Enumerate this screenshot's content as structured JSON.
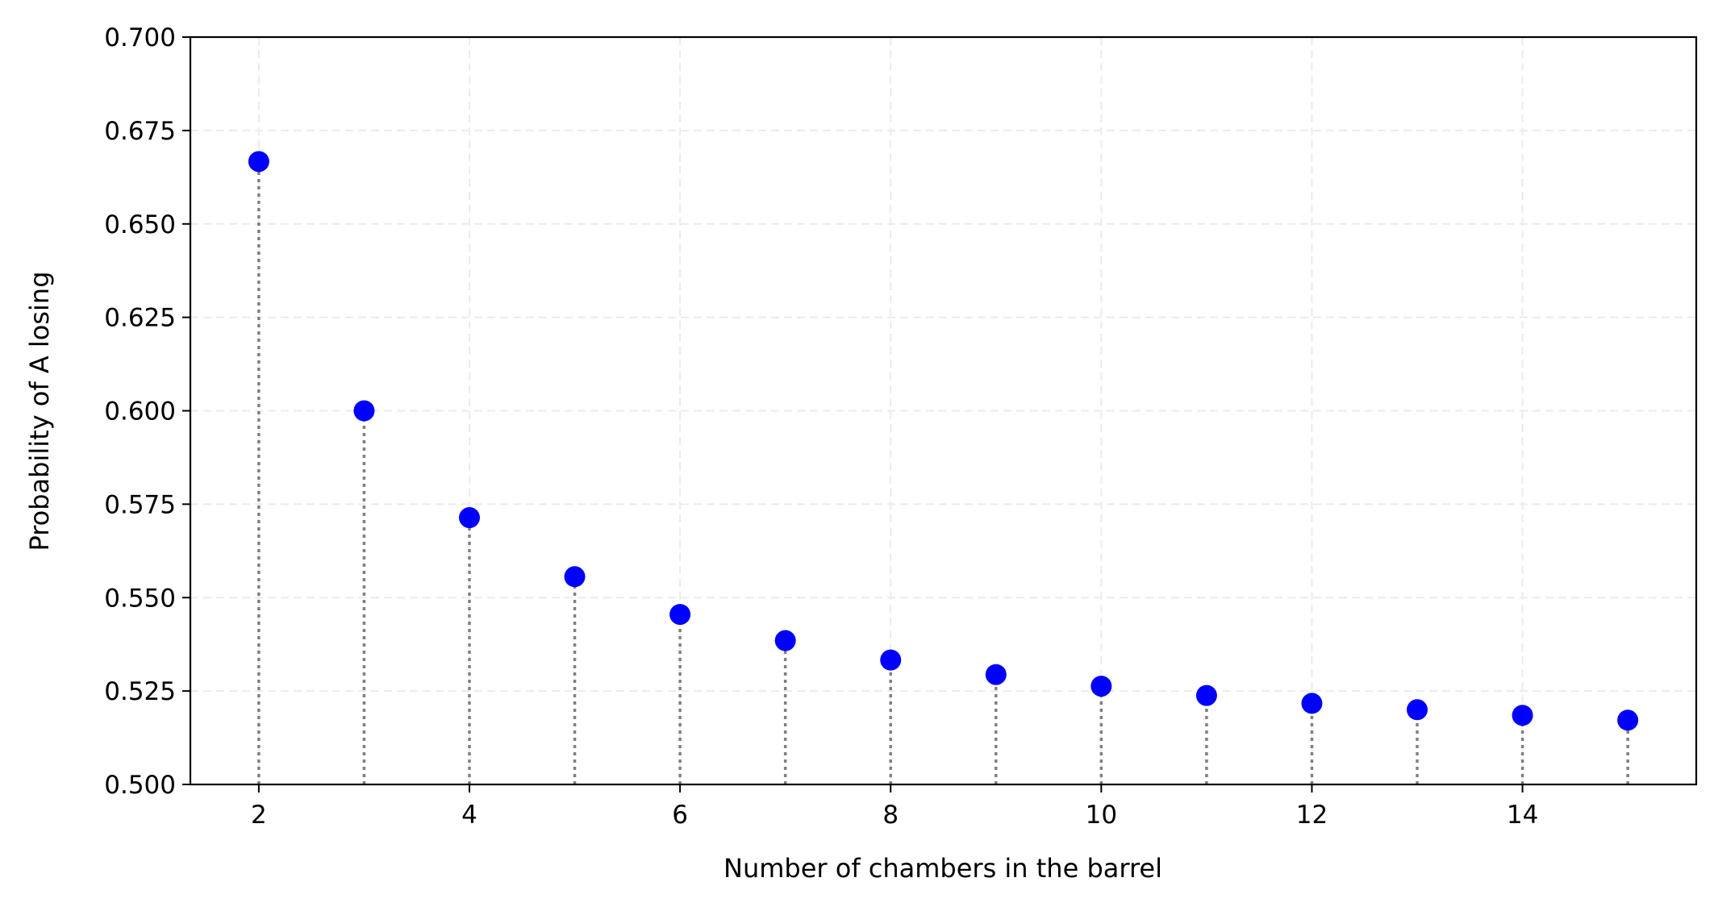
{
  "chart_data": {
    "type": "scatter",
    "title": "",
    "xlabel": "Number of chambers in the barrel",
    "ylabel": "Probability of A losing",
    "xlim": [
      1.35,
      15.65
    ],
    "ylim": [
      0.5,
      0.7
    ],
    "xticks": [
      2,
      4,
      6,
      8,
      10,
      12,
      14
    ],
    "xtick_labels": [
      "2",
      "4",
      "6",
      "8",
      "10",
      "12",
      "14"
    ],
    "yticks": [
      0.5,
      0.525,
      0.55,
      0.575,
      0.6,
      0.625,
      0.65,
      0.675,
      0.7
    ],
    "ytick_labels": [
      "0.500",
      "0.525",
      "0.550",
      "0.575",
      "0.600",
      "0.625",
      "0.650",
      "0.675",
      "0.700"
    ],
    "grid": true,
    "stems": true,
    "marker_color": "#0000ff",
    "stem_color": "#808080",
    "grid_color": "#ebebeb",
    "x": [
      2,
      3,
      4,
      5,
      6,
      7,
      8,
      9,
      10,
      11,
      12,
      13,
      14,
      15
    ],
    "y": [
      0.6667,
      0.6,
      0.5714,
      0.5556,
      0.5455,
      0.5385,
      0.5333,
      0.5294,
      0.5263,
      0.5238,
      0.5217,
      0.52,
      0.5185,
      0.5172
    ]
  }
}
